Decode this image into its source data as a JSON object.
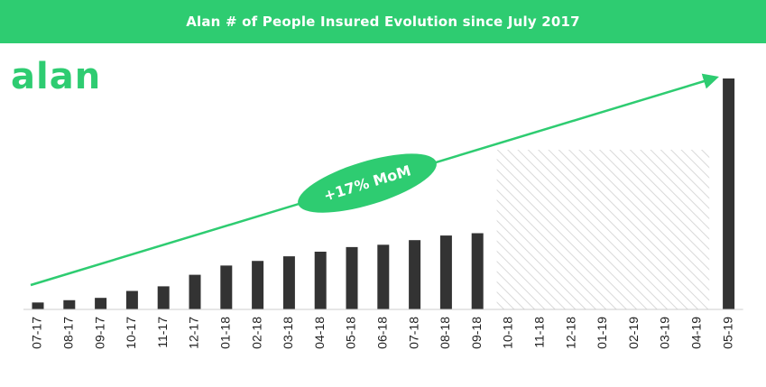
{
  "header": {
    "title": "Alan # of People Insured Evolution since July 2017"
  },
  "logo": {
    "text": "alan"
  },
  "annotation": {
    "growth_label": "+17% MoM"
  },
  "colors": {
    "accent": "#2ecc71",
    "bar": "#333333",
    "hatch": "#d9d9d9"
  },
  "chart_data": {
    "type": "bar",
    "title": "Alan # of People Insured Evolution since July 2017",
    "xlabel": "",
    "ylabel": "",
    "y_axis_shown": false,
    "grid": false,
    "categories": [
      "07-17",
      "08-17",
      "09-17",
      "10-17",
      "11-17",
      "12-17",
      "01-18",
      "02-18",
      "03-18",
      "04-18",
      "05-18",
      "06-18",
      "07-18",
      "08-18",
      "09-18",
      "10-18",
      "11-18",
      "12-18",
      "01-19",
      "02-19",
      "03-19",
      "04-19",
      "05-19"
    ],
    "values": [
      3,
      4,
      5,
      8,
      10,
      15,
      19,
      21,
      23,
      25,
      27,
      28,
      30,
      32,
      33,
      null,
      null,
      null,
      null,
      null,
      null,
      null,
      100
    ],
    "ylim": [
      0,
      100
    ],
    "hatched_gap": {
      "from": "10-18",
      "to": "04-19"
    },
    "trend_arrow": {
      "from": "07-17",
      "to": "05-19",
      "label": "+17% MoM"
    }
  }
}
